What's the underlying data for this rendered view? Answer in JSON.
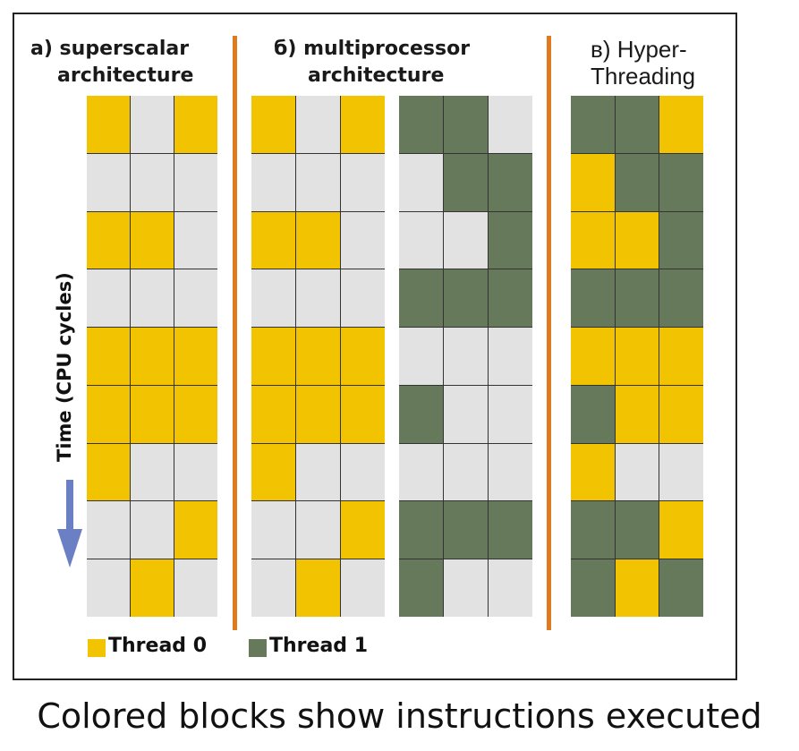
{
  "panels": {
    "a": {
      "title_line1": "a) superscalar",
      "title_line2": "architecture",
      "grid": [
        [
          1,
          0,
          1
        ],
        [
          0,
          0,
          0
        ],
        [
          1,
          1,
          0
        ],
        [
          0,
          0,
          0
        ],
        [
          1,
          1,
          1
        ],
        [
          1,
          1,
          1
        ],
        [
          1,
          0,
          0
        ],
        [
          0,
          0,
          1
        ],
        [
          0,
          1,
          0
        ]
      ]
    },
    "b": {
      "title_line1": "б) multiprocessor",
      "title_line2": "architecture",
      "grid_left": [
        [
          1,
          0,
          1
        ],
        [
          0,
          0,
          0
        ],
        [
          1,
          1,
          0
        ],
        [
          0,
          0,
          0
        ],
        [
          1,
          1,
          1
        ],
        [
          1,
          1,
          1
        ],
        [
          1,
          0,
          0
        ],
        [
          0,
          0,
          1
        ],
        [
          0,
          1,
          0
        ]
      ],
      "grid_right": [
        [
          2,
          2,
          0
        ],
        [
          0,
          2,
          2
        ],
        [
          0,
          0,
          2
        ],
        [
          2,
          2,
          2
        ],
        [
          0,
          0,
          0
        ],
        [
          2,
          0,
          0
        ],
        [
          0,
          0,
          0
        ],
        [
          2,
          2,
          2
        ],
        [
          2,
          0,
          0
        ]
      ]
    },
    "c": {
      "title_line1": "в) Hyper-",
      "title_line2": "Threading",
      "grid": [
        [
          2,
          2,
          1
        ],
        [
          1,
          2,
          2
        ],
        [
          1,
          1,
          2
        ],
        [
          2,
          2,
          2
        ],
        [
          1,
          1,
          1
        ],
        [
          2,
          1,
          1
        ],
        [
          1,
          0,
          0
        ],
        [
          2,
          2,
          1
        ],
        [
          2,
          1,
          2
        ]
      ]
    }
  },
  "axis": {
    "label": "Time (CPU cycles)"
  },
  "legend": [
    {
      "label": "Thread 0",
      "color": "#f2c300"
    },
    {
      "label": "Thread 1",
      "color": "#66795a"
    }
  ],
  "caption": "Colored blocks show instructions executed",
  "colors": {
    "empty": "#e2e2e2",
    "thread0": "#f2c300",
    "thread1": "#66795a",
    "separator": "#e07a1f",
    "arrow": "#6b7fc4"
  }
}
